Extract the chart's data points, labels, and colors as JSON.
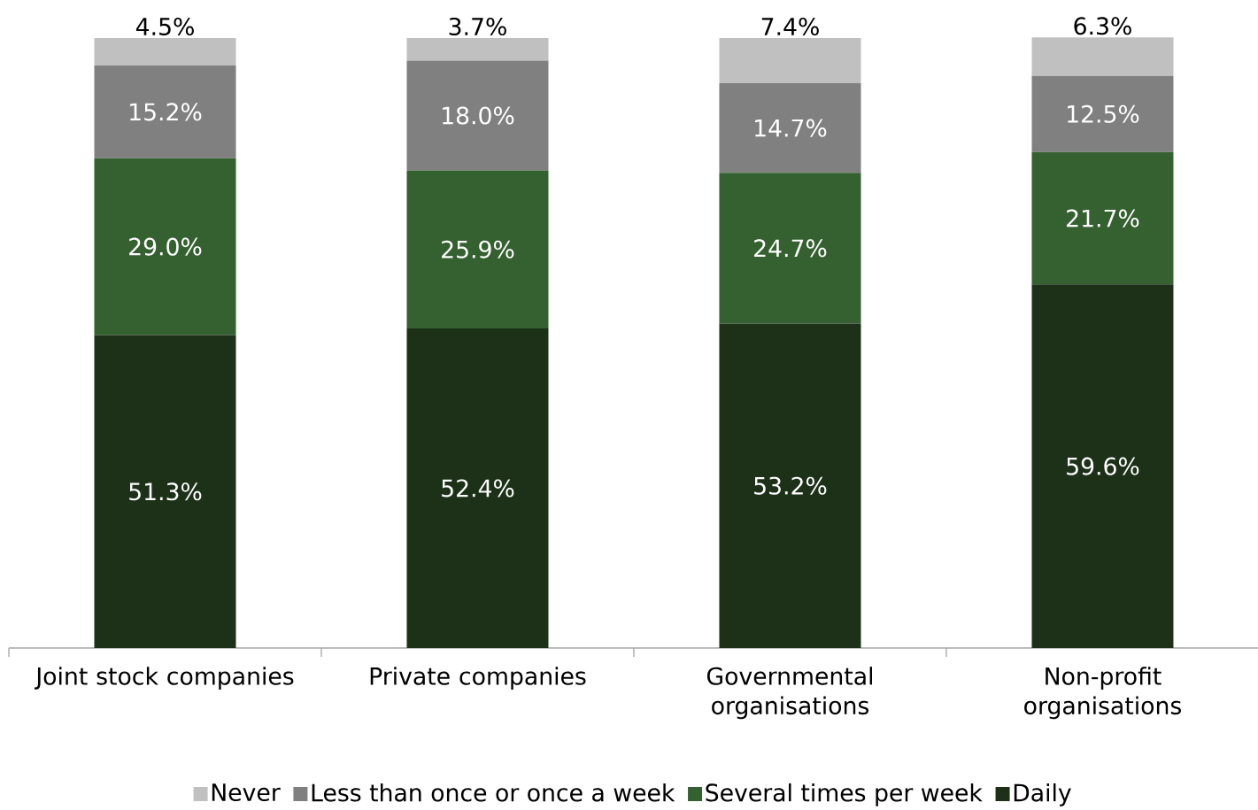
{
  "chart_data": {
    "type": "bar",
    "stacked": true,
    "categories": [
      "Joint stock companies",
      "Private companies",
      "Governmental organisations",
      "Non-profit organisations"
    ],
    "ylim": [
      0,
      100
    ],
    "tick_labels": "x",
    "legend": "bottom",
    "series": [
      {
        "name": "Daily",
        "color": "#1c3118",
        "values": [
          51.3,
          52.4,
          53.2,
          59.6
        ],
        "value_labels": [
          "51.3%",
          "52.4%",
          "53.2%",
          "59.6%"
        ]
      },
      {
        "name": "Several times per week",
        "color": "#356030",
        "values": [
          29.0,
          25.9,
          24.7,
          21.7
        ],
        "value_labels": [
          "29.0%",
          "25.9%",
          "24.7%",
          "21.7%"
        ]
      },
      {
        "name": "Less than once or once a week",
        "color": "#808080",
        "values": [
          15.2,
          18.0,
          14.7,
          12.5
        ],
        "value_labels": [
          "15.2%",
          "18.0%",
          "14.7%",
          "12.5%"
        ]
      },
      {
        "name": "Never",
        "color": "#c0c0c0",
        "values": [
          4.5,
          3.7,
          7.4,
          6.3
        ],
        "value_labels": [
          "4.5%",
          "3.7%",
          "7.4%",
          "6.3%"
        ]
      }
    ]
  }
}
